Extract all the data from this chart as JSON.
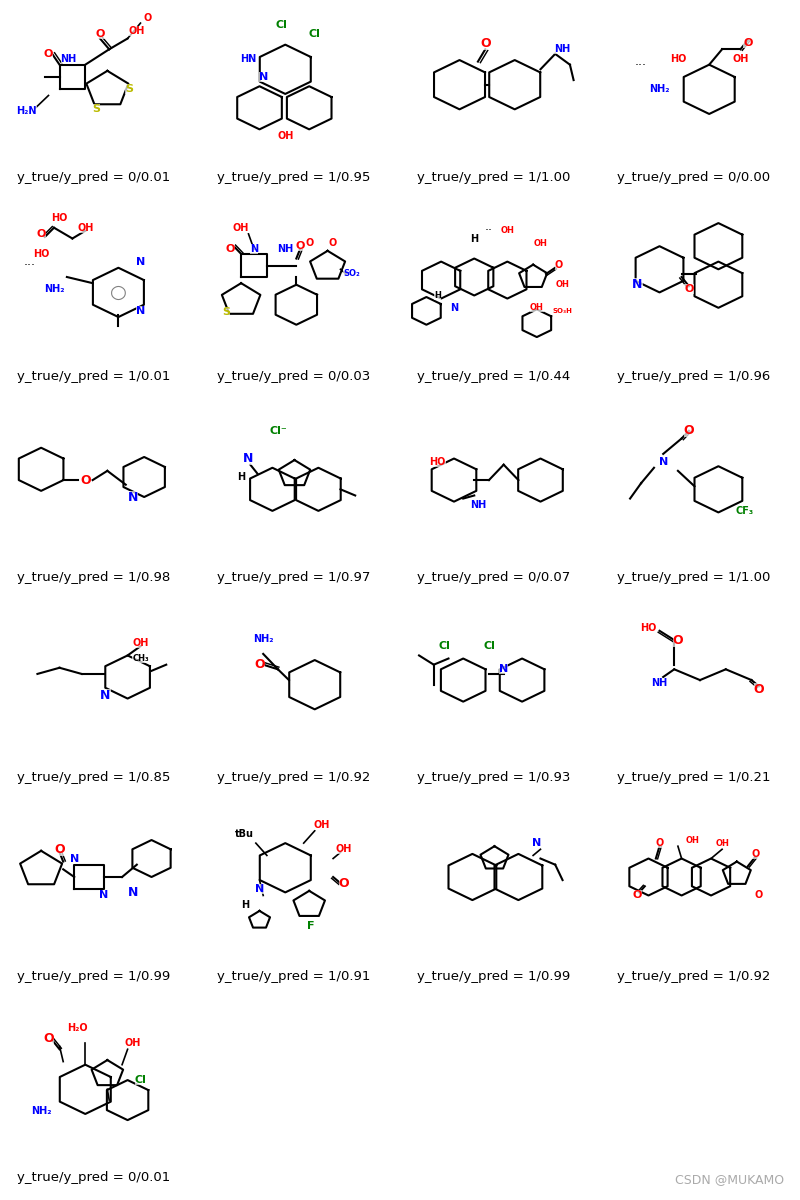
{
  "title": "",
  "background_color": "#ffffff",
  "grid_rows": 6,
  "grid_cols": 4,
  "figsize": [
    8.0,
    12.0
  ],
  "dpi": 100,
  "labels": [
    "y_true/y_pred = 0/0.01",
    "y_true/y_pred = 1/0.95",
    "y_true/y_pred = 1/1.00",
    "y_true/y_pred = 0/0.00",
    "y_true/y_pred = 1/0.01",
    "y_true/y_pred = 0/0.03",
    "y_true/y_pred = 1/0.44",
    "y_true/y_pred = 1/0.96",
    "y_true/y_pred = 1/0.98",
    "y_true/y_pred = 1/0.97",
    "y_true/y_pred = 0/0.07",
    "y_true/y_pred = 1/1.00",
    "y_true/y_pred = 1/0.85",
    "y_true/y_pred = 1/0.92",
    "y_true/y_pred = 1/0.93",
    "y_true/y_pred = 1/0.21",
    "y_true/y_pred = 1/0.99",
    "y_true/y_pred = 1/0.91",
    "y_true/y_pred = 1/0.99",
    "y_true/y_pred = 1/0.92",
    "y_true/y_pred = 0/0.01"
  ],
  "watermark": "CSDN @MUKAMO",
  "watermark_color": "#aaaaaa",
  "label_fontsize": 9.5,
  "watermark_fontsize": 9,
  "label_color": "#000000"
}
